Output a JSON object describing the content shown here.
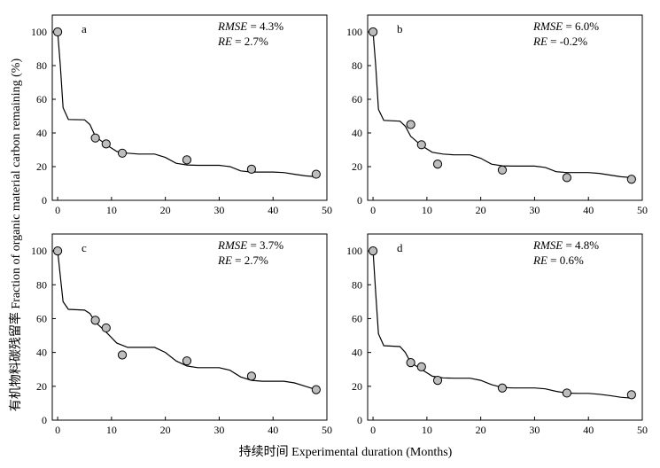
{
  "figure": {
    "ylabel": "有机物料碳残留率 Fraction of organic material carbon remaining (%)",
    "xlabel": "持续时间 Experimental duration (Months)"
  },
  "chart_data": [
    {
      "type": "scatter",
      "panel": "a",
      "rmse_label": "RMSE",
      "rmse_value": " = 4.3%",
      "re_label": "RE",
      "re_value": " = 2.7%",
      "xlim": [
        -1,
        50
      ],
      "ylim": [
        0,
        110
      ],
      "xticks": [
        0,
        10,
        20,
        30,
        40,
        50
      ],
      "yticks": [
        0,
        20,
        40,
        60,
        80,
        100
      ],
      "observed": {
        "x": [
          0,
          7,
          9,
          12,
          24,
          36,
          48
        ],
        "y": [
          100,
          37,
          33.5,
          28,
          24,
          18.5,
          15.5
        ]
      },
      "model": {
        "x": [
          0,
          0.5,
          1,
          2,
          5,
          6,
          7,
          9,
          11,
          13,
          15,
          18,
          20,
          22,
          24,
          26,
          28,
          30,
          32,
          34,
          36,
          38,
          40,
          42,
          44,
          46,
          48
        ],
        "y": [
          100,
          80,
          55,
          48,
          47.8,
          45,
          38,
          33,
          29,
          28,
          27.5,
          27.5,
          25.5,
          22,
          21,
          20.8,
          20.8,
          20.8,
          20,
          17.5,
          16.8,
          16.8,
          16.8,
          16.5,
          15.5,
          14.5,
          14
        ]
      }
    },
    {
      "type": "scatter",
      "panel": "b",
      "rmse_label": "RMSE",
      "rmse_value": " = 6.0%",
      "re_label": "RE",
      "re_value": " = -0.2%",
      "xlim": [
        -1,
        50
      ],
      "ylim": [
        0,
        110
      ],
      "xticks": [
        0,
        10,
        20,
        30,
        40,
        50
      ],
      "yticks": [
        0,
        20,
        40,
        60,
        80,
        100
      ],
      "observed": {
        "x": [
          0,
          7,
          9,
          12,
          24,
          36,
          48
        ],
        "y": [
          100,
          45,
          33,
          21.5,
          18,
          13.5,
          12.5
        ]
      },
      "model": {
        "x": [
          0,
          0.5,
          1,
          2,
          5,
          6,
          7,
          9,
          11,
          13,
          15,
          18,
          20,
          22,
          24,
          26,
          28,
          30,
          32,
          34,
          36,
          38,
          40,
          42,
          44,
          46,
          48
        ],
        "y": [
          100,
          80,
          54,
          47.5,
          47,
          44,
          38,
          32.5,
          28.5,
          27.5,
          27,
          27,
          25,
          21.5,
          20.5,
          20.3,
          20.3,
          20.3,
          19.5,
          17,
          16.5,
          16.5,
          16.5,
          16,
          15,
          14,
          13.5
        ]
      }
    },
    {
      "type": "scatter",
      "panel": "c",
      "rmse_label": "RMSE",
      "rmse_value": " = 3.7%",
      "re_label": "RE",
      "re_value": " = 2.7%",
      "xlim": [
        -1,
        50
      ],
      "ylim": [
        0,
        110
      ],
      "xticks": [
        0,
        10,
        20,
        30,
        40,
        50
      ],
      "yticks": [
        0,
        20,
        40,
        60,
        80,
        100
      ],
      "observed": {
        "x": [
          0,
          7,
          9,
          12,
          24,
          36,
          48
        ],
        "y": [
          100,
          59,
          54.5,
          38.5,
          35,
          26,
          18
        ]
      },
      "model": {
        "x": [
          0,
          0.5,
          1,
          2,
          5,
          6,
          7,
          9,
          11,
          13,
          15,
          18,
          20,
          22,
          24,
          26,
          28,
          30,
          32,
          34,
          36,
          38,
          40,
          42,
          44,
          46,
          48
        ],
        "y": [
          100,
          85,
          70,
          65.5,
          65,
          63,
          58,
          52,
          45.5,
          43,
          43,
          43,
          40,
          35,
          32,
          31,
          31,
          31,
          29.5,
          25.5,
          23.5,
          23,
          23,
          23,
          22,
          20,
          18
        ]
      }
    },
    {
      "type": "scatter",
      "panel": "d",
      "rmse_label": "RMSE",
      "rmse_value": " = 4.8%",
      "re_label": "RE",
      "re_value": " = 0.6%",
      "xlim": [
        -1,
        50
      ],
      "ylim": [
        0,
        110
      ],
      "xticks": [
        0,
        10,
        20,
        30,
        40,
        50
      ],
      "yticks": [
        0,
        20,
        40,
        60,
        80,
        100
      ],
      "observed": {
        "x": [
          0,
          7,
          9,
          12,
          24,
          36,
          48
        ],
        "y": [
          100,
          34,
          31.5,
          23.5,
          19,
          16,
          15
        ]
      },
      "model": {
        "x": [
          0,
          0.5,
          1,
          2,
          5,
          6,
          7,
          9,
          11,
          13,
          15,
          18,
          20,
          22,
          24,
          26,
          28,
          30,
          32,
          34,
          36,
          38,
          40,
          42,
          44,
          46,
          48
        ],
        "y": [
          100,
          75,
          51,
          44,
          43.5,
          40,
          34,
          30,
          26,
          25,
          24.8,
          24.8,
          23.5,
          21,
          19.3,
          19,
          19,
          19,
          18.5,
          17,
          16,
          15.8,
          15.8,
          15.3,
          14.5,
          13.5,
          13
        ]
      }
    }
  ]
}
